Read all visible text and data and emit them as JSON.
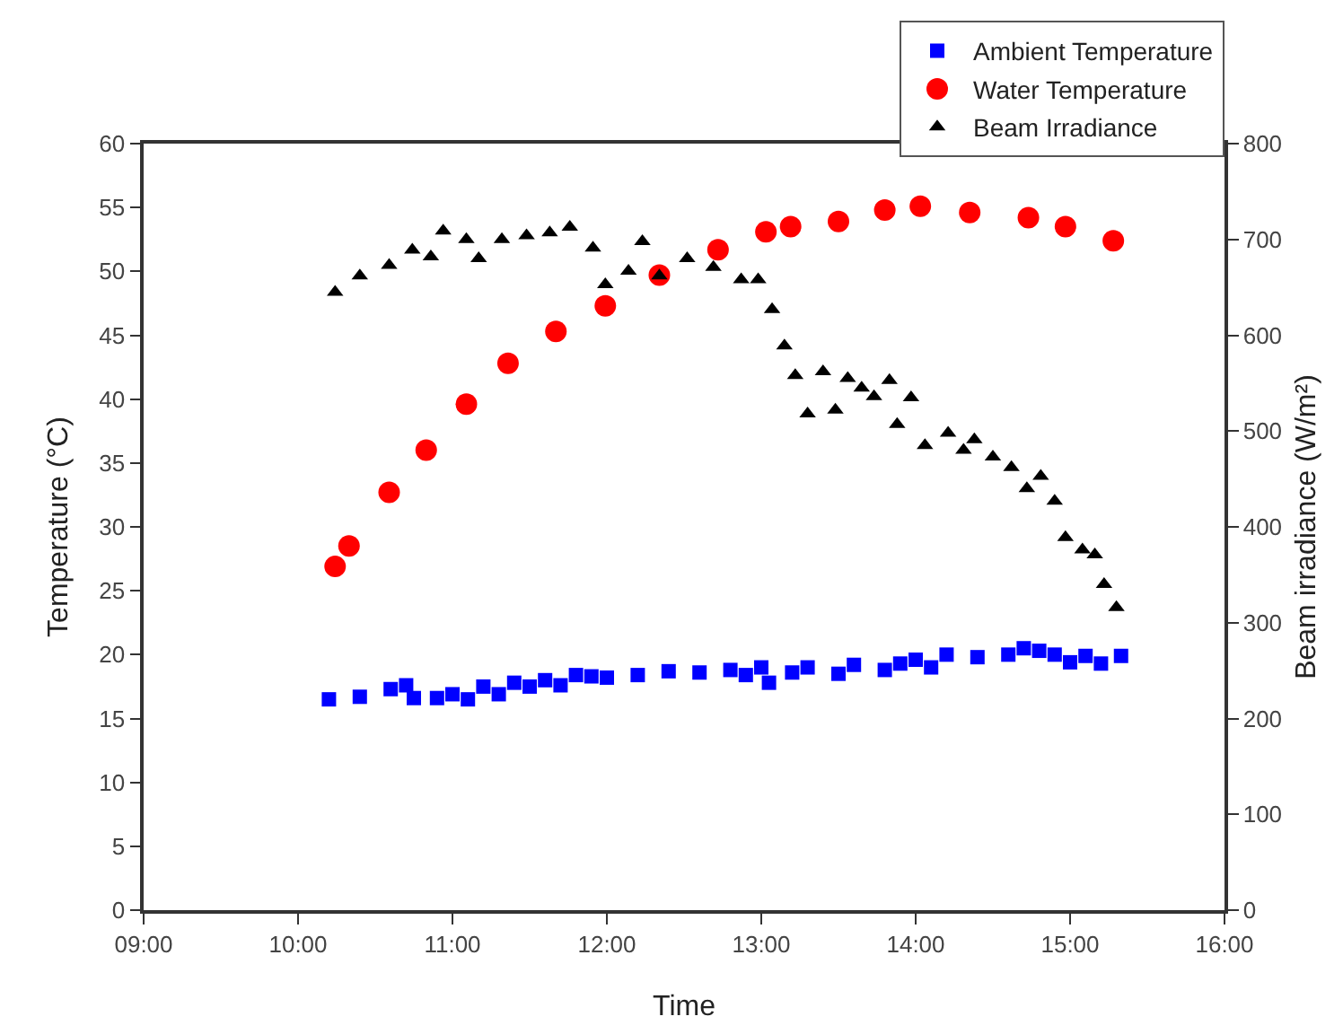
{
  "chart_data": {
    "type": "scatter",
    "xlabel": "Time",
    "ylabel": "Temperature (°C)",
    "y2label": "Beam irradiance (W/m²)",
    "xlim": [
      9,
      16
    ],
    "xticks": [
      {
        "value": 9,
        "label": "09:00"
      },
      {
        "value": 10,
        "label": "10:00"
      },
      {
        "value": 11,
        "label": "11:00"
      },
      {
        "value": 12,
        "label": "12:00"
      },
      {
        "value": 13,
        "label": "13:00"
      },
      {
        "value": 14,
        "label": "14:00"
      },
      {
        "value": 15,
        "label": "15:00"
      },
      {
        "value": 16,
        "label": "16:00"
      }
    ],
    "ylim": [
      0,
      60
    ],
    "yticks": [
      0,
      5,
      10,
      15,
      20,
      25,
      30,
      35,
      40,
      45,
      50,
      55,
      60
    ],
    "y2lim": [
      0,
      800
    ],
    "y2ticks": [
      0,
      100,
      200,
      300,
      400,
      500,
      600,
      700,
      800
    ],
    "grid": false,
    "legend": "top right",
    "series": [
      {
        "name": "Ambient Temperature",
        "color": "#0000ff",
        "marker": "square",
        "x": [
          10.2,
          10.4,
          10.6,
          10.7,
          10.75,
          10.9,
          11.0,
          11.1,
          11.2,
          11.3,
          11.4,
          11.5,
          11.6,
          11.7,
          11.8,
          11.9,
          12.0,
          12.2,
          12.4,
          12.6,
          12.8,
          12.9,
          13.0,
          13.05,
          13.2,
          13.3,
          13.5,
          13.6,
          13.8,
          13.9,
          14.0,
          14.1,
          14.2,
          14.4,
          14.6,
          14.7,
          14.8,
          14.9,
          15.0,
          15.1,
          15.2,
          15.33
        ],
        "values": [
          16.5,
          16.7,
          17.3,
          17.6,
          16.6,
          16.6,
          16.9,
          16.5,
          17.5,
          16.9,
          17.8,
          17.5,
          18.0,
          17.6,
          18.4,
          18.3,
          18.2,
          18.4,
          18.7,
          18.6,
          18.8,
          18.4,
          19.0,
          17.8,
          18.6,
          19.0,
          18.5,
          19.2,
          18.8,
          19.3,
          19.6,
          19.0,
          20.0,
          19.8,
          20.0,
          20.5,
          20.3,
          20.0,
          19.4,
          19.9,
          19.3,
          19.9
        ]
      },
      {
        "name": "Water Temperature",
        "color": "#ff0000",
        "marker": "circle",
        "x": [
          10.24,
          10.33,
          10.59,
          10.83,
          11.09,
          11.36,
          11.67,
          11.99,
          12.34,
          12.72,
          13.03,
          13.19,
          13.5,
          13.8,
          14.03,
          14.35,
          14.73,
          14.97,
          15.28
        ],
        "values": [
          26.9,
          28.5,
          32.7,
          36,
          39.6,
          42.8,
          45.3,
          47.3,
          49.7,
          51.7,
          53.1,
          53.5,
          53.9,
          54.8,
          55.1,
          54.6,
          54.2,
          53.5,
          52.4
        ]
      },
      {
        "name": "Beam Irradiance",
        "color": "#000000",
        "marker": "triangle",
        "axis": "y2",
        "x": [
          10.24,
          10.4,
          10.59,
          10.74,
          10.86,
          10.94,
          11.09,
          11.17,
          11.32,
          11.48,
          11.63,
          11.76,
          11.91,
          11.99,
          12.14,
          12.23,
          12.34,
          12.52,
          12.69,
          12.87,
          12.98,
          13.07,
          13.15,
          13.22,
          13.3,
          13.4,
          13.48,
          13.56,
          13.65,
          13.73,
          13.83,
          13.88,
          13.97,
          14.06,
          14.21,
          14.31,
          14.38,
          14.5,
          14.62,
          14.72,
          14.81,
          14.9,
          14.97,
          15.08,
          15.16,
          15.22,
          15.3
        ],
        "values": [
          645,
          662,
          673,
          689,
          682,
          709,
          700,
          680,
          700,
          704,
          707,
          713,
          691,
          653,
          667,
          698,
          662,
          680,
          671,
          658,
          658,
          627,
          589,
          558,
          518,
          562,
          522,
          555,
          545,
          536,
          553,
          507,
          535,
          485,
          498,
          480,
          491,
          473,
          462,
          440,
          453,
          427,
          389,
          376,
          371,
          340,
          316
        ]
      }
    ]
  }
}
